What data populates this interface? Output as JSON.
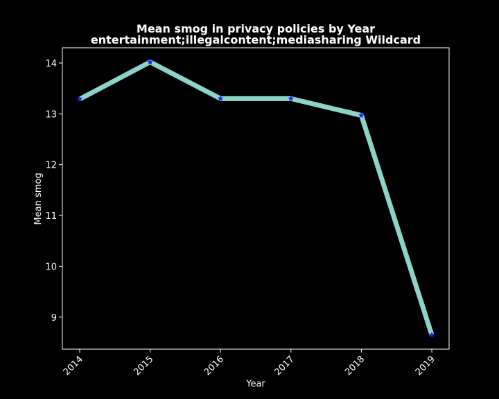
{
  "chart_data": {
    "type": "line",
    "title": "Mean smog in privacy policies by Year",
    "subtitle": "entertainment;illegalcontent;mediasharing Wildcard",
    "xlabel": "Year",
    "ylabel": "Mean smog",
    "x": [
      "2014",
      "2015",
      "2016",
      "2017",
      "2018",
      "2019"
    ],
    "values": [
      13.29,
      14.02,
      13.3,
      13.3,
      12.97,
      8.65
    ],
    "ylim": [
      8.37,
      14.3
    ],
    "yticks": [
      9,
      10,
      11,
      12,
      13,
      14
    ],
    "grid": false,
    "legend": "none",
    "colors": {
      "background": "#000000",
      "line": "#8dd3c7",
      "marker": "#1f1fff",
      "axes": "#ffffff",
      "text": "#ffffff"
    }
  }
}
